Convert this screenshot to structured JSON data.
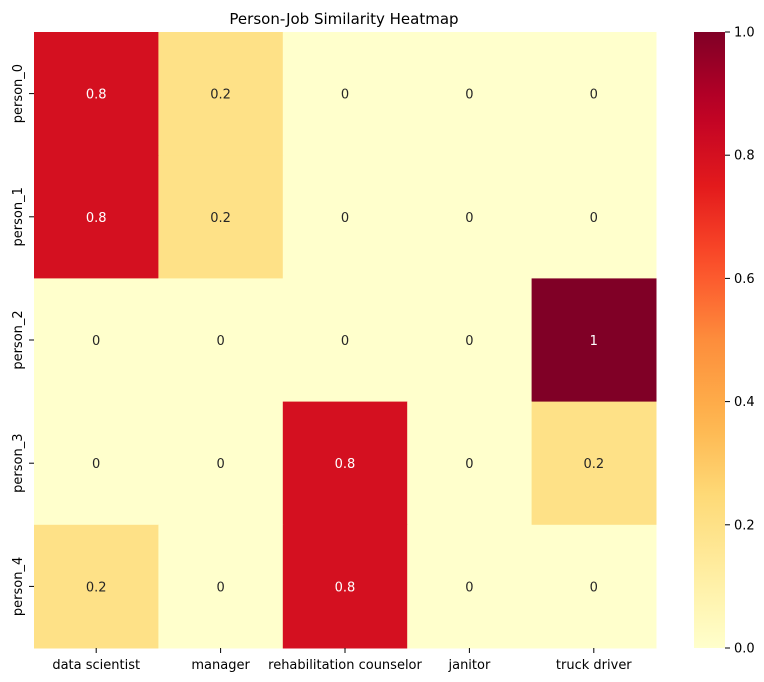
{
  "chart_data": {
    "type": "heatmap",
    "title": "Person-Job Similarity Heatmap",
    "xlabel": "",
    "ylabel": "",
    "x_categories": [
      "data scientist",
      "manager",
      "rehabilitation counselor",
      "janitor",
      "truck driver"
    ],
    "y_categories": [
      "person_0",
      "person_1",
      "person_2",
      "person_3",
      "person_4"
    ],
    "values": [
      [
        0.8,
        0.2,
        0,
        0,
        0
      ],
      [
        0.8,
        0.2,
        0,
        0,
        0
      ],
      [
        0,
        0,
        0,
        0,
        1
      ],
      [
        0,
        0,
        0.8,
        0,
        0.2
      ],
      [
        0.2,
        0,
        0.8,
        0,
        0
      ]
    ],
    "annotations": [
      [
        "0.8",
        "0.2",
        "0",
        "0",
        "0"
      ],
      [
        "0.8",
        "0.2",
        "0",
        "0",
        "0"
      ],
      [
        "0",
        "0",
        "0",
        "0",
        "1"
      ],
      [
        "0",
        "0",
        "0.8",
        "0",
        "0.2"
      ],
      [
        "0.2",
        "0",
        "0.8",
        "0",
        "0"
      ]
    ],
    "colormap": "YlOrRd",
    "colorbar": {
      "range": [
        0.0,
        1.0
      ],
      "ticks": [
        0.0,
        0.2,
        0.4,
        0.6,
        0.8,
        1.0
      ],
      "tick_labels": [
        "0.0",
        "0.2",
        "0.4",
        "0.6",
        "0.8",
        "1.0"
      ]
    },
    "grid": false
  }
}
